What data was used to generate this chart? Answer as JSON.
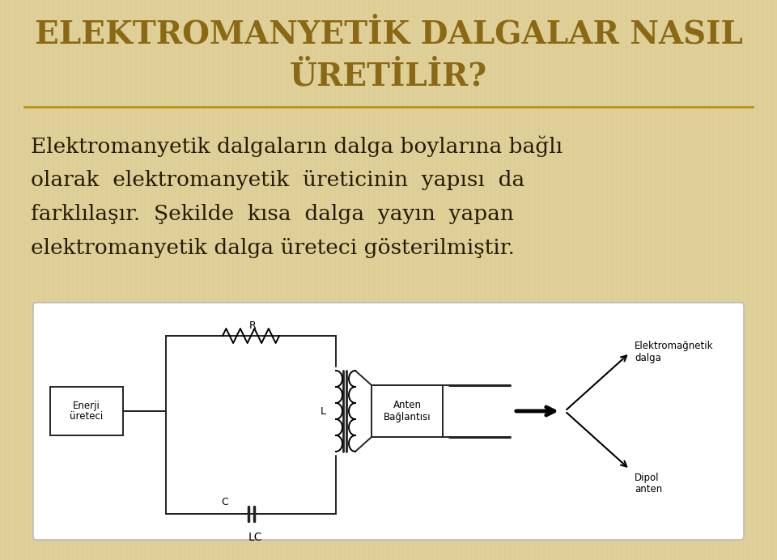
{
  "title_line1": "ELEKTROMANYETİK DALGALAR NASIL",
  "title_line2": "ÜRETİLİR?",
  "title_color": "#8B6914",
  "title_fontsize": 28,
  "body_lines": [
    "Elektromanyetik dalgaların dalga boylarına bağlı",
    "olarak  elektromanyetik  üreticinin  yapısı  da",
    "farklılaşır.  Şekilde  kısa  dalga  yayın  yapan",
    "elektromanyetik dalga üreteci gösterilmiştir."
  ],
  "body_color": "#2a1a05",
  "body_fontsize": 19,
  "bg_color": "#dfd09a",
  "separator_color": "#b8960a",
  "diagram_border": "#bbbbbb",
  "line_color": "#222222"
}
